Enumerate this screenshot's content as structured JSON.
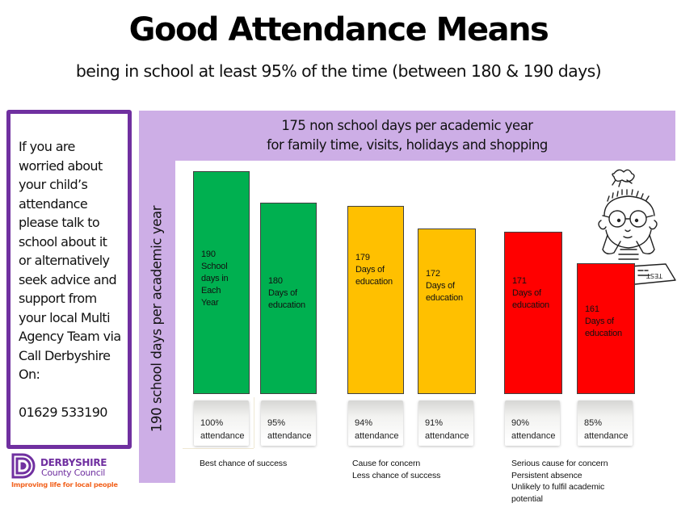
{
  "header": {
    "title": "Good Attendance Means",
    "subtitle": "being in school at least 95% of the time (between 180 & 190 days)"
  },
  "info_box": {
    "text": "If you are\nworried about\nyour child’s\nattendance\nplease talk to\nschool about it\nor alternatively\nseek advice and\nsupport from\nyour local Multi\nAgency Team via\nCall Derbyshire\nOn:\n\n01629 533190",
    "phone": "01629 533190",
    "border_color": "#7030a0"
  },
  "logo": {
    "icon": "derbyshire-d-logo-icon",
    "name_line1": "DERBYSHIRE",
    "name_line2": "County Council",
    "tagline": "Improving life for local people",
    "brand_color": "#7030a0",
    "tagline_color": "#f26522"
  },
  "frame": {
    "top_text": "175 non school days per academic  year\nfor family time, visits, holidays and shopping",
    "left_text": "190 school days per academic year",
    "color": "#cdaee6"
  },
  "illustration": {
    "icon": "worried-student-taking-test-icon",
    "test_paper_text": "TEST"
  },
  "chart_data": {
    "type": "bar",
    "title": "Good Attendance Means",
    "subtitle": "being in school at least 95% of the time (between 180 & 190 days)",
    "xlabel": "",
    "ylabel": "190 school days per academic year",
    "ylim": [
      0,
      190
    ],
    "grid": false,
    "legend": "none",
    "categories": [
      "100% attendance",
      "95% attendance",
      "94% attendance",
      "91% attendance",
      "90% attendance",
      "85% attendance"
    ],
    "values": [
      190,
      180,
      179,
      172,
      171,
      161
    ],
    "attendance_percent": [
      100,
      95,
      94,
      91,
      90,
      85
    ],
    "bars": [
      {
        "value": 190,
        "label": "190\nSchool\ndays in\nEach\nYear",
        "attendance": "100%\nattendance",
        "color": "#00b050",
        "group": 0
      },
      {
        "value": 180,
        "label": "180\nDays of\neducation",
        "attendance": "95%\nattendance",
        "color": "#00b050",
        "group": 0
      },
      {
        "value": 179,
        "label": "179\nDays of\neducation",
        "attendance": "94%\nattendance",
        "color": "#ffc000",
        "group": 1
      },
      {
        "value": 172,
        "label": "172\nDays of\neducation",
        "attendance": "91%\nattendance",
        "color": "#ffc000",
        "group": 1
      },
      {
        "value": 171,
        "label": "171\nDays of\neducation",
        "attendance": "90%\nattendance",
        "color": "#ff0000",
        "group": 2
      },
      {
        "value": 161,
        "label": "161\nDays of\neducation",
        "attendance": "85%\nattendance",
        "color": "#ff0000",
        "group": 2
      }
    ],
    "groups": [
      {
        "name": "green",
        "color": "#00b050",
        "caption": "Best chance of success"
      },
      {
        "name": "amber",
        "color": "#ffc000",
        "caption": "Cause for concern\nLess chance of success"
      },
      {
        "name": "red",
        "color": "#ff0000",
        "caption": "Serious cause for concern\nPersistent absence\nUnlikely to fulfil academic\npotential"
      }
    ]
  }
}
